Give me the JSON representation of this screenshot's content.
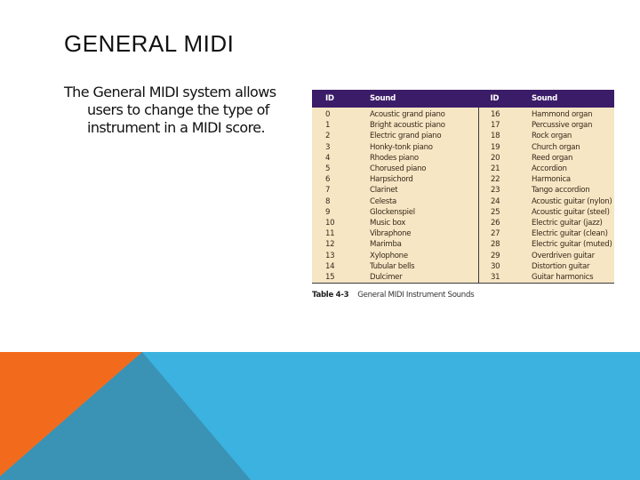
{
  "slide": {
    "title": "GENERAL MIDI",
    "body_line1": "The General MIDI system allows",
    "body_line2": "users to change the type of",
    "body_line3": "instrument in a MIDI score."
  },
  "table": {
    "headers": [
      "ID",
      "Sound",
      "ID",
      "Sound"
    ],
    "rows": [
      [
        "0",
        "Acoustic grand piano",
        "16",
        "Hammond organ"
      ],
      [
        "1",
        "Bright acoustic piano",
        "17",
        "Percussive organ"
      ],
      [
        "2",
        "Electric grand piano",
        "18",
        "Rock organ"
      ],
      [
        "3",
        "Honky-tonk piano",
        "19",
        "Church organ"
      ],
      [
        "4",
        "Rhodes piano",
        "20",
        "Reed organ"
      ],
      [
        "5",
        "Chorused piano",
        "21",
        "Accordion"
      ],
      [
        "6",
        "Harpsichord",
        "22",
        "Harmonica"
      ],
      [
        "7",
        "Clarinet",
        "23",
        "Tango accordion"
      ],
      [
        "8",
        "Celesta",
        "24",
        "Acoustic guitar (nylon)"
      ],
      [
        "9",
        "Glockenspiel",
        "25",
        "Acoustic guitar (steel)"
      ],
      [
        "10",
        "Music box",
        "26",
        "Electric guitar (jazz)"
      ],
      [
        "11",
        "Vibraphone",
        "27",
        "Electric guitar (clean)"
      ],
      [
        "12",
        "Marimba",
        "28",
        "Electric guitar (muted)"
      ],
      [
        "13",
        "Xylophone",
        "29",
        "Overdriven guitar"
      ],
      [
        "14",
        "Tubular bells",
        "30",
        "Distortion guitar"
      ],
      [
        "15",
        "Dulcimer",
        "31",
        "Guitar harmonics"
      ]
    ],
    "caption_label": "Table 4-3",
    "caption_text": "General MIDI Instrument Sounds"
  },
  "colors": {
    "header_bg": "#3b1c68",
    "body_bg": "#f6e6c4",
    "orange": "#f26b1d",
    "teal": "#3a92b4",
    "light_blue": "#3bb2df"
  }
}
